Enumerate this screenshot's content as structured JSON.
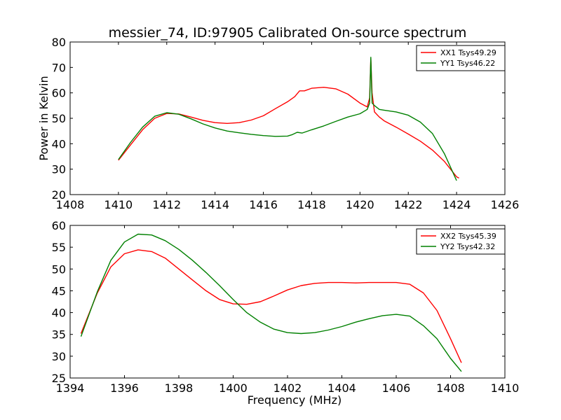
{
  "page": {
    "title": "messier_74, ID:97905 Calibrated On-source spectrum"
  },
  "chart_data": [
    {
      "type": "line",
      "title": "messier_74, ID:97905 Calibrated On-source spectrum",
      "xlabel": "",
      "ylabel": "Power in Kelvin",
      "xlim": [
        1408,
        1426
      ],
      "ylim": [
        20,
        80
      ],
      "xticks": [
        1408,
        1410,
        1412,
        1414,
        1416,
        1418,
        1420,
        1422,
        1424,
        1426
      ],
      "yticks": [
        20,
        30,
        40,
        50,
        60,
        70,
        80
      ],
      "legend_position": "top-right",
      "series": [
        {
          "name": "XX1 Tsys49.29",
          "color": "#ff0000",
          "points": [
            [
              1410,
              33.5
            ],
            [
              1410.5,
              39.5
            ],
            [
              1411,
              45.5
            ],
            [
              1411.5,
              50
            ],
            [
              1412,
              51.9
            ],
            [
              1412.5,
              51.7
            ],
            [
              1413,
              50.5
            ],
            [
              1413.5,
              49.2
            ],
            [
              1414,
              48.3
            ],
            [
              1414.5,
              48.0
            ],
            [
              1415,
              48.3
            ],
            [
              1415.5,
              49.3
            ],
            [
              1416,
              51.0
            ],
            [
              1416.5,
              53.8
            ],
            [
              1417,
              56.5
            ],
            [
              1417.3,
              58.5
            ],
            [
              1417.5,
              60.8
            ],
            [
              1417.7,
              60.8
            ],
            [
              1418,
              61.8
            ],
            [
              1418.5,
              62.2
            ],
            [
              1419,
              61.6
            ],
            [
              1419.5,
              59.5
            ],
            [
              1420,
              56.0
            ],
            [
              1420.3,
              54.5
            ],
            [
              1420.4,
              58.0
            ],
            [
              1420.45,
              73.5
            ],
            [
              1420.5,
              60.0
            ],
            [
              1420.6,
              52.5
            ],
            [
              1420.8,
              50.5
            ],
            [
              1421,
              49.0
            ],
            [
              1421.5,
              46.5
            ],
            [
              1422,
              43.8
            ],
            [
              1422.5,
              41.0
            ],
            [
              1423,
              37.5
            ],
            [
              1423.5,
              33.0
            ],
            [
              1424,
              27.0
            ],
            [
              1424.1,
              26.5
            ]
          ]
        },
        {
          "name": "YY1 Tsys46.22",
          "color": "#008000",
          "points": [
            [
              1410,
              33.8
            ],
            [
              1410.5,
              40.5
            ],
            [
              1411,
              46.5
            ],
            [
              1411.5,
              50.8
            ],
            [
              1412,
              52.2
            ],
            [
              1412.5,
              51.6
            ],
            [
              1413,
              49.8
            ],
            [
              1413.5,
              47.8
            ],
            [
              1414,
              46.2
            ],
            [
              1414.5,
              45.0
            ],
            [
              1415,
              44.3
            ],
            [
              1415.5,
              43.7
            ],
            [
              1416,
              43.2
            ],
            [
              1416.5,
              42.9
            ],
            [
              1417,
              43.0
            ],
            [
              1417.2,
              43.6
            ],
            [
              1417.4,
              44.5
            ],
            [
              1417.6,
              44.2
            ],
            [
              1418,
              45.5
            ],
            [
              1418.5,
              47.0
            ],
            [
              1419,
              48.8
            ],
            [
              1419.5,
              50.5
            ],
            [
              1420,
              51.8
            ],
            [
              1420.3,
              53.5
            ],
            [
              1420.4,
              56.0
            ],
            [
              1420.45,
              74.0
            ],
            [
              1420.5,
              56.0
            ],
            [
              1420.6,
              55.0
            ],
            [
              1420.8,
              53.5
            ],
            [
              1421,
              53.2
            ],
            [
              1421.5,
              52.5
            ],
            [
              1422,
              51.2
            ],
            [
              1422.5,
              48.5
            ],
            [
              1423,
              44.0
            ],
            [
              1423.5,
              36.0
            ],
            [
              1424,
              25.5
            ]
          ]
        }
      ]
    },
    {
      "type": "line",
      "title": "",
      "xlabel": "Frequency (MHz)",
      "ylabel": "",
      "xlim": [
        1394,
        1410
      ],
      "ylim": [
        25,
        60
      ],
      "xticks": [
        1394,
        1396,
        1398,
        1400,
        1402,
        1404,
        1406,
        1408,
        1410
      ],
      "yticks": [
        25,
        30,
        35,
        40,
        45,
        50,
        55,
        60
      ],
      "legend_position": "top-right",
      "series": [
        {
          "name": "XX2 Tsys45.39",
          "color": "#ff0000",
          "points": [
            [
              1394.4,
              35.2
            ],
            [
              1395,
              44.5
            ],
            [
              1395.5,
              50.5
            ],
            [
              1396,
              53.5
            ],
            [
              1396.5,
              54.4
            ],
            [
              1397,
              54.0
            ],
            [
              1397.5,
              52.5
            ],
            [
              1398,
              50.0
            ],
            [
              1398.5,
              47.5
            ],
            [
              1399,
              45.0
            ],
            [
              1399.5,
              43.0
            ],
            [
              1400,
              42.0
            ],
            [
              1400.5,
              41.9
            ],
            [
              1401,
              42.5
            ],
            [
              1401.5,
              43.8
            ],
            [
              1402,
              45.2
            ],
            [
              1402.5,
              46.2
            ],
            [
              1403,
              46.7
            ],
            [
              1403.5,
              46.9
            ],
            [
              1404,
              46.9
            ],
            [
              1404.5,
              46.8
            ],
            [
              1405,
              46.9
            ],
            [
              1405.5,
              46.9
            ],
            [
              1406,
              46.9
            ],
            [
              1406.5,
              46.5
            ],
            [
              1407,
              44.5
            ],
            [
              1407.5,
              40.5
            ],
            [
              1408,
              34.0
            ],
            [
              1408.4,
              28.5
            ]
          ]
        },
        {
          "name": "YY2 Tsys42.32",
          "color": "#008000",
          "points": [
            [
              1394.4,
              34.5
            ],
            [
              1395,
              44.8
            ],
            [
              1395.5,
              52.0
            ],
            [
              1396,
              56.2
            ],
            [
              1396.5,
              58.0
            ],
            [
              1397,
              57.8
            ],
            [
              1397.5,
              56.5
            ],
            [
              1398,
              54.5
            ],
            [
              1398.5,
              52.0
            ],
            [
              1399,
              49.2
            ],
            [
              1399.5,
              46.2
            ],
            [
              1400,
              43.0
            ],
            [
              1400.5,
              40.0
            ],
            [
              1401,
              37.8
            ],
            [
              1401.5,
              36.2
            ],
            [
              1402,
              35.4
            ],
            [
              1402.5,
              35.2
            ],
            [
              1403,
              35.4
            ],
            [
              1403.5,
              36.0
            ],
            [
              1404,
              36.8
            ],
            [
              1404.5,
              37.8
            ],
            [
              1405,
              38.6
            ],
            [
              1405.5,
              39.3
            ],
            [
              1406,
              39.6
            ],
            [
              1406.5,
              39.2
            ],
            [
              1407,
              37.0
            ],
            [
              1407.5,
              34.0
            ],
            [
              1408,
              29.5
            ],
            [
              1408.4,
              26.5
            ]
          ]
        }
      ]
    }
  ]
}
